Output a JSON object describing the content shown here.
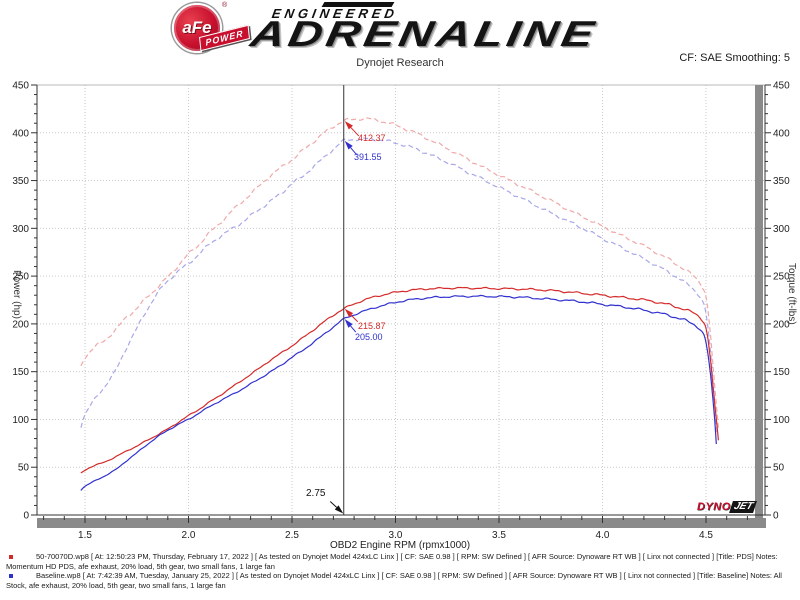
{
  "header": {
    "brand": {
      "badge": "aFe",
      "badge_sub": "POWER",
      "registered": "®",
      "line1": "ENGINEERED",
      "line2": "ADRENALINE"
    },
    "subtitle": "Dynojet Research",
    "smoothing": "CF: SAE Smoothing: 5"
  },
  "watermark": {
    "part1": "DYNO",
    "part2": "JET"
  },
  "chart_data": {
    "type": "line",
    "xlabel": "OBD2 Engine RPM (rpmx1000)",
    "ylabel_left": "Power (hp)",
    "ylabel_right": "Torque (ft-lbs)",
    "xlim": [
      1.27,
      4.74
    ],
    "ylim_left": [
      0,
      450
    ],
    "ylim_right": [
      0,
      450
    ],
    "x_major_ticks": [
      1.5,
      2.0,
      2.5,
      3.0,
      3.5,
      4.0,
      4.5
    ],
    "x_minor_step": 0.1,
    "y_major_step": 50,
    "y_minor_step": 10,
    "grid": "dotted",
    "power_formula": "hp = ft-lbs x rpm(x1000) / 5252",
    "cursor": {
      "rpm": 2.75,
      "label": "2.75",
      "readouts": {
        "torque_run1": "412.37",
        "torque_run2": "391.55",
        "power_run1": "215.87",
        "power_run2": "205.00"
      }
    },
    "series": [
      {
        "id": "run1_torque",
        "name": "PDS Torque (ft-lbs)",
        "color": "#f0a8a8",
        "line": "dashed",
        "points": [
          [
            1.48,
            156
          ],
          [
            1.5,
            165
          ],
          [
            1.55,
            176
          ],
          [
            1.6,
            184
          ],
          [
            1.65,
            194
          ],
          [
            1.7,
            207
          ],
          [
            1.75,
            216
          ],
          [
            1.8,
            228
          ],
          [
            1.85,
            238
          ],
          [
            1.9,
            249
          ],
          [
            1.95,
            261
          ],
          [
            2.0,
            273
          ],
          [
            2.05,
            283
          ],
          [
            2.1,
            295
          ],
          [
            2.15,
            305
          ],
          [
            2.2,
            316
          ],
          [
            2.25,
            326
          ],
          [
            2.3,
            336
          ],
          [
            2.35,
            346
          ],
          [
            2.4,
            356
          ],
          [
            2.45,
            364
          ],
          [
            2.5,
            372
          ],
          [
            2.55,
            381
          ],
          [
            2.6,
            390
          ],
          [
            2.65,
            399
          ],
          [
            2.7,
            406.5
          ],
          [
            2.75,
            412.37
          ],
          [
            2.8,
            414
          ],
          [
            2.85,
            415
          ],
          [
            2.9,
            413.5
          ],
          [
            2.95,
            411
          ],
          [
            3.0,
            408
          ],
          [
            3.05,
            404
          ],
          [
            3.1,
            399.5
          ],
          [
            3.15,
            394.5
          ],
          [
            3.2,
            389
          ],
          [
            3.3,
            378
          ],
          [
            3.4,
            366.5
          ],
          [
            3.5,
            355.5
          ],
          [
            3.6,
            345
          ],
          [
            3.7,
            334.5
          ],
          [
            3.8,
            323.5
          ],
          [
            3.9,
            312.5
          ],
          [
            4.0,
            302
          ],
          [
            4.1,
            291.5
          ],
          [
            4.2,
            281.5
          ],
          [
            4.3,
            270
          ],
          [
            4.35,
            263.5
          ],
          [
            4.4,
            256.5
          ],
          [
            4.45,
            248
          ],
          [
            4.48,
            240
          ],
          [
            4.5,
            228
          ],
          [
            4.52,
            192
          ],
          [
            4.54,
            139
          ],
          [
            4.56,
            90
          ]
        ]
      },
      {
        "id": "run2_torque",
        "name": "Baseline Torque (ft-lbs)",
        "color": "#a8a8e8",
        "line": "dashed",
        "points": [
          [
            1.48,
            93
          ],
          [
            1.5,
            105
          ],
          [
            1.55,
            122
          ],
          [
            1.6,
            136
          ],
          [
            1.65,
            152
          ],
          [
            1.7,
            175
          ],
          [
            1.75,
            195
          ],
          [
            1.8,
            215
          ],
          [
            1.85,
            232
          ],
          [
            1.9,
            245
          ],
          [
            1.95,
            255
          ],
          [
            2.0,
            263
          ],
          [
            2.05,
            273
          ],
          [
            2.1,
            283
          ],
          [
            2.15,
            291
          ],
          [
            2.2,
            298
          ],
          [
            2.25,
            305
          ],
          [
            2.3,
            313
          ],
          [
            2.35,
            321
          ],
          [
            2.4,
            329
          ],
          [
            2.45,
            337
          ],
          [
            2.5,
            347
          ],
          [
            2.55,
            354
          ],
          [
            2.6,
            364
          ],
          [
            2.65,
            373
          ],
          [
            2.7,
            383
          ],
          [
            2.75,
            391.55
          ],
          [
            2.8,
            393
          ],
          [
            2.85,
            393.5
          ],
          [
            2.9,
            393
          ],
          [
            2.95,
            391.5
          ],
          [
            3.0,
            389.5
          ],
          [
            3.05,
            386.5
          ],
          [
            3.1,
            383
          ],
          [
            3.15,
            378.5
          ],
          [
            3.2,
            374
          ],
          [
            3.3,
            364
          ],
          [
            3.4,
            353.5
          ],
          [
            3.5,
            343
          ],
          [
            3.6,
            332.5
          ],
          [
            3.7,
            321.5
          ],
          [
            3.8,
            311
          ],
          [
            3.9,
            300.5
          ],
          [
            4.0,
            289.5
          ],
          [
            4.1,
            279
          ],
          [
            4.2,
            268
          ],
          [
            4.3,
            256.5
          ],
          [
            4.35,
            250
          ],
          [
            4.4,
            243
          ],
          [
            4.45,
            234
          ],
          [
            4.48,
            225
          ],
          [
            4.5,
            210
          ],
          [
            4.52,
            174
          ],
          [
            4.54,
            121
          ],
          [
            4.55,
            87
          ]
        ]
      },
      {
        "id": "run1_power",
        "name": "PDS Power (hp)",
        "color": "#d42a2a",
        "line": "solid",
        "derived_from": "run1_torque"
      },
      {
        "id": "run2_power",
        "name": "Baseline Power (hp)",
        "color": "#3030cf",
        "line": "solid",
        "derived_from": "run2_torque"
      }
    ]
  },
  "footer": {
    "runs": [
      {
        "bullet_color": "#d42a2a",
        "text": "50-70070D.wp8 [ At: 12:50:23 PM, Thursday, February 17, 2022 ] [ As tested on Dynojet Model 424xLC Linx ] [ CF: SAE 0.98 ] [ RPM: SW Defined ] [ AFR Source: Dynoware RT WB ] [ Linx not connected ] [Title: PDS]  Notes: Momentum HD PDS, afe exhaust, 20% load, 5th gear, two small fans, 1 large fan"
      },
      {
        "bullet_color": "#3030cf",
        "text": "Baseline.wp8 [ At: 7:42:39 AM, Tuesday, January 25, 2022 ] [ As tested on Dynojet Model 424xLC Linx ] [ CF: SAE 0.98 ] [ RPM: SW Defined ] [ AFR Source: Dynoware RT WB ] [ Linx not connected ] [Title: Baseline]  Notes: All Stock, afe exhaust, 20% load, 5th gear, two small fans, 1 large fan"
      }
    ]
  }
}
